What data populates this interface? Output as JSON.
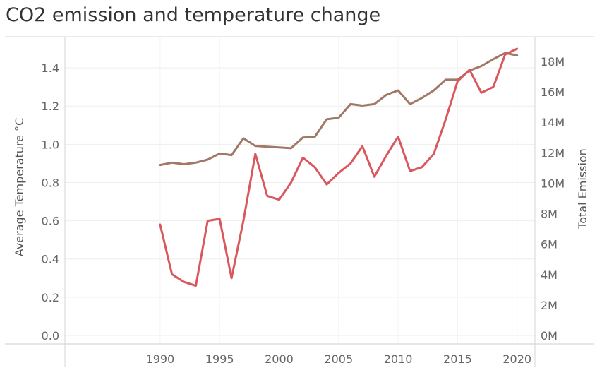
{
  "title": "CO2  emission and temperature change",
  "chart_data": {
    "type": "line",
    "title": "CO2  emission and temperature change",
    "x": [
      1990,
      1991,
      1992,
      1993,
      1994,
      1995,
      1996,
      1997,
      1998,
      1999,
      2000,
      2001,
      2002,
      2003,
      2004,
      2005,
      2006,
      2007,
      2008,
      2009,
      2010,
      2011,
      2012,
      2013,
      2014,
      2015,
      2016,
      2017,
      2018,
      2019,
      2020
    ],
    "xlim": [
      1982,
      2021.5
    ],
    "xticks": [
      "1990",
      "1995",
      "2000",
      "2005",
      "2010",
      "2015",
      "2020"
    ],
    "ylabel_left": "Average Temperature °C",
    "ylabel_right": "Total Emission",
    "ylim_left": [
      0,
      1.56
    ],
    "yticks_left": [
      "0.0",
      "0.2",
      "0.4",
      "0.6",
      "0.8",
      "1.0",
      "1.2",
      "1.4"
    ],
    "ylim_right": [
      0,
      19000000
    ],
    "yticks_right": [
      "0M",
      "2M",
      "4M",
      "6M",
      "8M",
      "10M",
      "12M",
      "14M",
      "16M",
      "18M"
    ],
    "grid": true,
    "series": [
      {
        "axis": "left",
        "color": "#d9575d",
        "values": [
          0.58,
          0.32,
          0.28,
          0.26,
          0.6,
          0.61,
          0.3,
          0.6,
          0.95,
          0.73,
          0.71,
          0.8,
          0.93,
          0.88,
          0.79,
          0.85,
          0.9,
          0.99,
          0.83,
          0.94,
          1.04,
          0.86,
          0.88,
          0.95,
          1.13,
          1.33,
          1.39,
          1.27,
          1.3,
          1.47,
          1.5
        ]
      },
      {
        "axis": "right",
        "color": "#a07865",
        "values": [
          11200000,
          11350000,
          11250000,
          11350000,
          11550000,
          11950000,
          11850000,
          12950000,
          12450000,
          12400000,
          12350000,
          12300000,
          13000000,
          13050000,
          14200000,
          14300000,
          15200000,
          15100000,
          15200000,
          15800000,
          16100000,
          15200000,
          15600000,
          16100000,
          16800000,
          16800000,
          17400000,
          17700000,
          18150000,
          18550000,
          18400000
        ]
      }
    ]
  }
}
